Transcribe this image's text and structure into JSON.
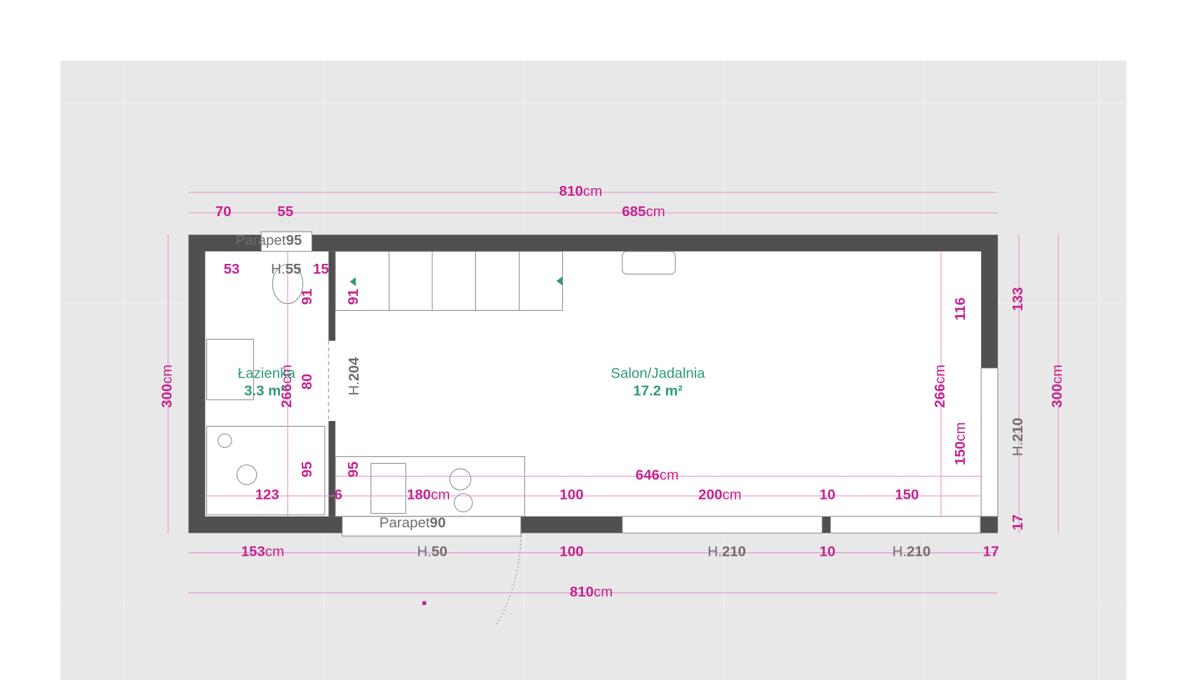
{
  "dimensions": [
    {
      "value": "810",
      "unit": "cm"
    },
    {
      "value": "70"
    },
    {
      "value": "55"
    },
    {
      "value": "685",
      "unit": "cm"
    },
    {
      "value": "53"
    },
    {
      "value": "15"
    },
    {
      "value": "91"
    },
    {
      "value": "91"
    },
    {
      "value": "116"
    },
    {
      "value": "133"
    },
    {
      "value": "300",
      "unit": "cm"
    },
    {
      "value": "266",
      "unit": "cm"
    },
    {
      "value": "80"
    },
    {
      "value": "266",
      "unit": "cm"
    },
    {
      "value": "300",
      "unit": "cm"
    },
    {
      "value": "150",
      "unit": "cm"
    },
    {
      "value": "95"
    },
    {
      "value": "95"
    },
    {
      "value": "646",
      "unit": "cm"
    },
    {
      "value": "123"
    },
    {
      "value": "6"
    },
    {
      "value": "180",
      "unit": "cm"
    },
    {
      "value": "100"
    },
    {
      "value": "200",
      "unit": "cm"
    },
    {
      "value": "10"
    },
    {
      "value": "150"
    },
    {
      "value": "17"
    },
    {
      "value": "153",
      "unit": "cm"
    },
    {
      "value": "100"
    },
    {
      "value": "10"
    },
    {
      "value": "17"
    },
    {
      "value": "810",
      "unit": "cm"
    }
  ],
  "heights": [
    {
      "prefix": "H.",
      "value": "55"
    },
    {
      "prefix": "H.",
      "value": "204"
    },
    {
      "prefix": "H.",
      "value": "210"
    },
    {
      "prefix": "H.",
      "value": "50"
    },
    {
      "prefix": "H.",
      "value": "210"
    },
    {
      "prefix": "H.",
      "value": "210"
    }
  ],
  "parapets": [
    {
      "label": "Parapet",
      "value": "95"
    },
    {
      "label": "Parapet",
      "value": "90"
    }
  ],
  "rooms": [
    {
      "name": "Łazienka",
      "area": "3.3 m²"
    },
    {
      "name": "Salon/Jadalnia",
      "area": "17.2 m²"
    }
  ]
}
